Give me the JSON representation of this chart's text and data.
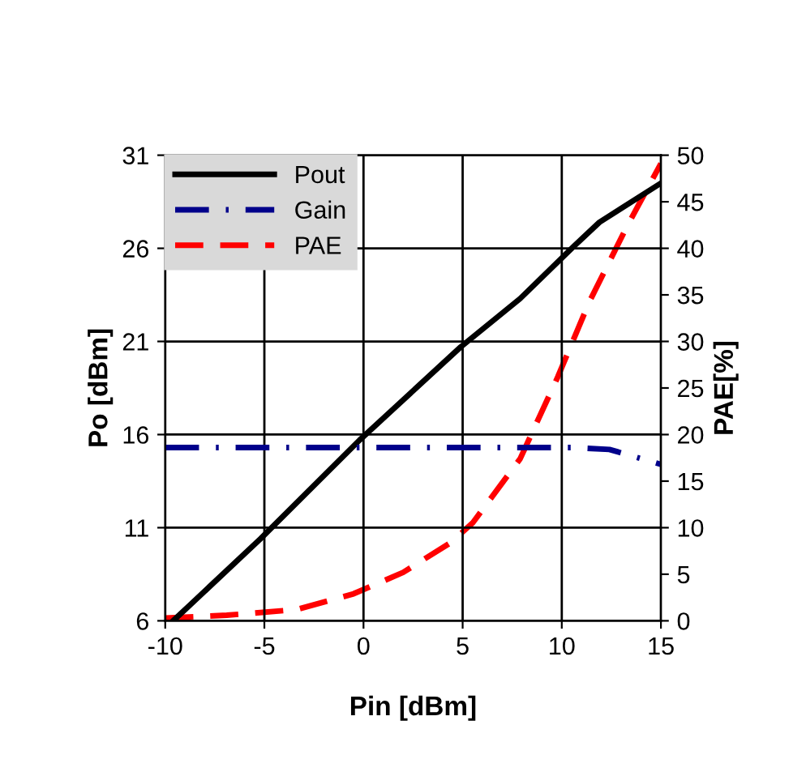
{
  "chart_data": {
    "type": "line",
    "xlabel": "Pin [dBm]",
    "ylabel": "Po [dBm]",
    "y2label": "PAE[%]",
    "xlim": [
      -10,
      15
    ],
    "xticks": [
      -10,
      -5,
      0,
      5,
      10,
      15
    ],
    "ylim": [
      6,
      31
    ],
    "yticks": [
      6,
      11,
      16,
      21,
      26,
      31
    ],
    "y2lim": [
      0,
      50
    ],
    "y2ticks": [
      0,
      5,
      10,
      15,
      20,
      25,
      30,
      35,
      40,
      45,
      50
    ],
    "grid": true,
    "legend": "top left",
    "series": [
      {
        "name": "Pout",
        "color": "#000000",
        "line_style": "solid",
        "x": [
          -9.6,
          -8.7,
          -5.2,
          -0.2,
          4.9,
          7.9,
          10.6,
          11.9,
          15
        ],
        "values": [
          6,
          6.9,
          10.4,
          15.7,
          20.7,
          23.3,
          26.1,
          27.4,
          29.5
        ]
      },
      {
        "name": "Gain",
        "color": "#00008b",
        "line_style": "dashdot",
        "x": [
          -10,
          -5,
          0,
          5,
          10.6,
          12.4,
          15
        ],
        "values": [
          15.3,
          15.3,
          15.3,
          15.3,
          15.3,
          15.2,
          14.4
        ]
      },
      {
        "name": "PAE",
        "color": "#ff0000",
        "line_style": "dashed",
        "axis": "y2",
        "x": [
          -10,
          -6.9,
          -3.4,
          -0.5,
          2,
          4.4,
          5.5,
          7.9,
          9.8,
          11.4,
          13.3,
          15
        ],
        "values": [
          0.3,
          0.6,
          1.2,
          2.9,
          5.2,
          8.4,
          10.5,
          17.4,
          26.2,
          34.3,
          42.4,
          49.1
        ]
      }
    ]
  }
}
